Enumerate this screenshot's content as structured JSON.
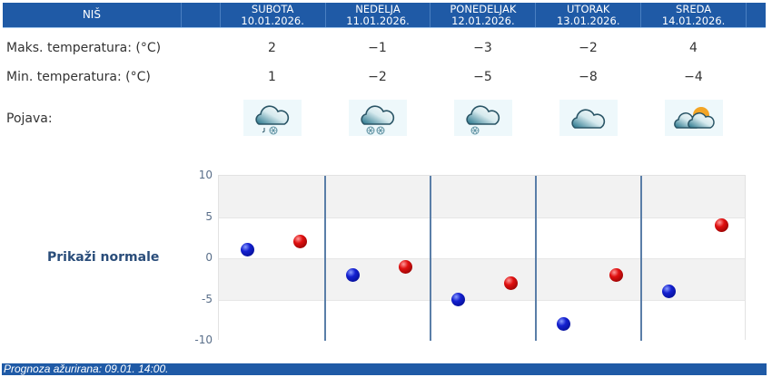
{
  "header": {
    "city": "NIŠ",
    "days": [
      {
        "name": "SUBOTA",
        "date": "10.01.2026."
      },
      {
        "name": "NEDELJA",
        "date": "11.01.2026."
      },
      {
        "name": "PONEDELJAK",
        "date": "12.01.2026."
      },
      {
        "name": "UTORAK",
        "date": "13.01.2026."
      },
      {
        "name": "SREDA",
        "date": "14.01.2026."
      }
    ]
  },
  "rows": {
    "max_label": "Maks. temperatura: (°C)",
    "min_label": "Min. temperatura: (°C)",
    "phen_label": "Pojava:",
    "max": [
      "2",
      "−1",
      "−3",
      "−2",
      "4"
    ],
    "min": [
      "1",
      "−2",
      "−5",
      "−8",
      "−4"
    ],
    "icons": [
      "cloud-rain-snow-icon",
      "cloud-heavy-snow-icon",
      "cloud-snow-icon",
      "cloud-icon",
      "partly-cloudy-sun-icon"
    ]
  },
  "show_normals": "Prikaži normale",
  "chart_data": {
    "type": "scatter",
    "categories": [
      "10.01.2026.",
      "11.01.2026.",
      "12.01.2026.",
      "13.01.2026.",
      "14.01.2026."
    ],
    "series": [
      {
        "name": "Min. temperatura",
        "color": "#1420d0",
        "values": [
          1,
          -2,
          -5,
          -8,
          -4
        ]
      },
      {
        "name": "Maks. temperatura",
        "color": "#e01010",
        "values": [
          2,
          -1,
          -3,
          -2,
          4
        ]
      }
    ],
    "yticks": [
      "10",
      "5",
      "0",
      "-5",
      "-10"
    ],
    "ylim": [
      -10,
      10
    ],
    "grid": true
  },
  "footer": "Prognoza ažurirana:  09.01. 14:00."
}
